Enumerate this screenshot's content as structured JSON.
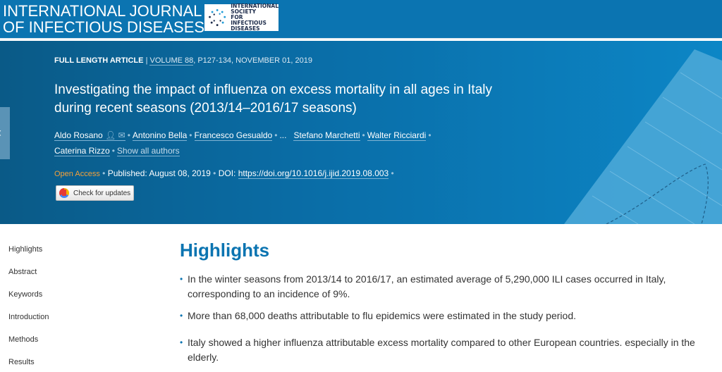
{
  "journal": {
    "title_line1": "INTERNATIONAL JOURNAL",
    "title_line2": "OF INFECTIOUS DISEASES",
    "logo_text": "INTERNATIONAL SOCIETY FOR INFECTIOUS DISEASES"
  },
  "article": {
    "type": "FULL LENGTH ARTICLE",
    "separator": "|",
    "volume": "VOLUME 88",
    "pages_date": ", P127-134, NOVEMBER 01, 2019",
    "title": "Investigating the impact of influenza on excess mortality in all ages in Italy during recent seasons (2013/14–2016/17 seasons)",
    "authors": [
      "Aldo Rosano",
      "Antonino Bella",
      "Francesco Gesualdo",
      "Stefano Marchetti",
      "Walter Ricciardi",
      "Caterina Rizzo"
    ],
    "ellipsis": "...",
    "show_all": "Show all authors",
    "open_access": "Open Access",
    "published": "Published: August 08, 2019",
    "doi_label": "DOI:",
    "doi": "https://doi.org/10.1016/j.ijid.2019.08.003",
    "check_updates": "Check for updates"
  },
  "sidebar": {
    "items": [
      "Highlights",
      "Abstract",
      "Keywords",
      "Introduction",
      "Methods",
      "Results"
    ]
  },
  "highlights": {
    "heading": "Highlights",
    "items": [
      "In the winter seasons from 2013/14 to 2016/17, an estimated average of 5,290,000 ILI cases occurred in Italy, corresponding to an incidence of 9%.",
      "More than 68,000 deaths attributable to flu epidemics were estimated in the study period.",
      "Italy showed a higher influenza attributable excess mortality compared to other European countries. especially in the elderly."
    ]
  },
  "colors": {
    "brand": "#0b74b1",
    "open_access": "#f4a13a"
  }
}
